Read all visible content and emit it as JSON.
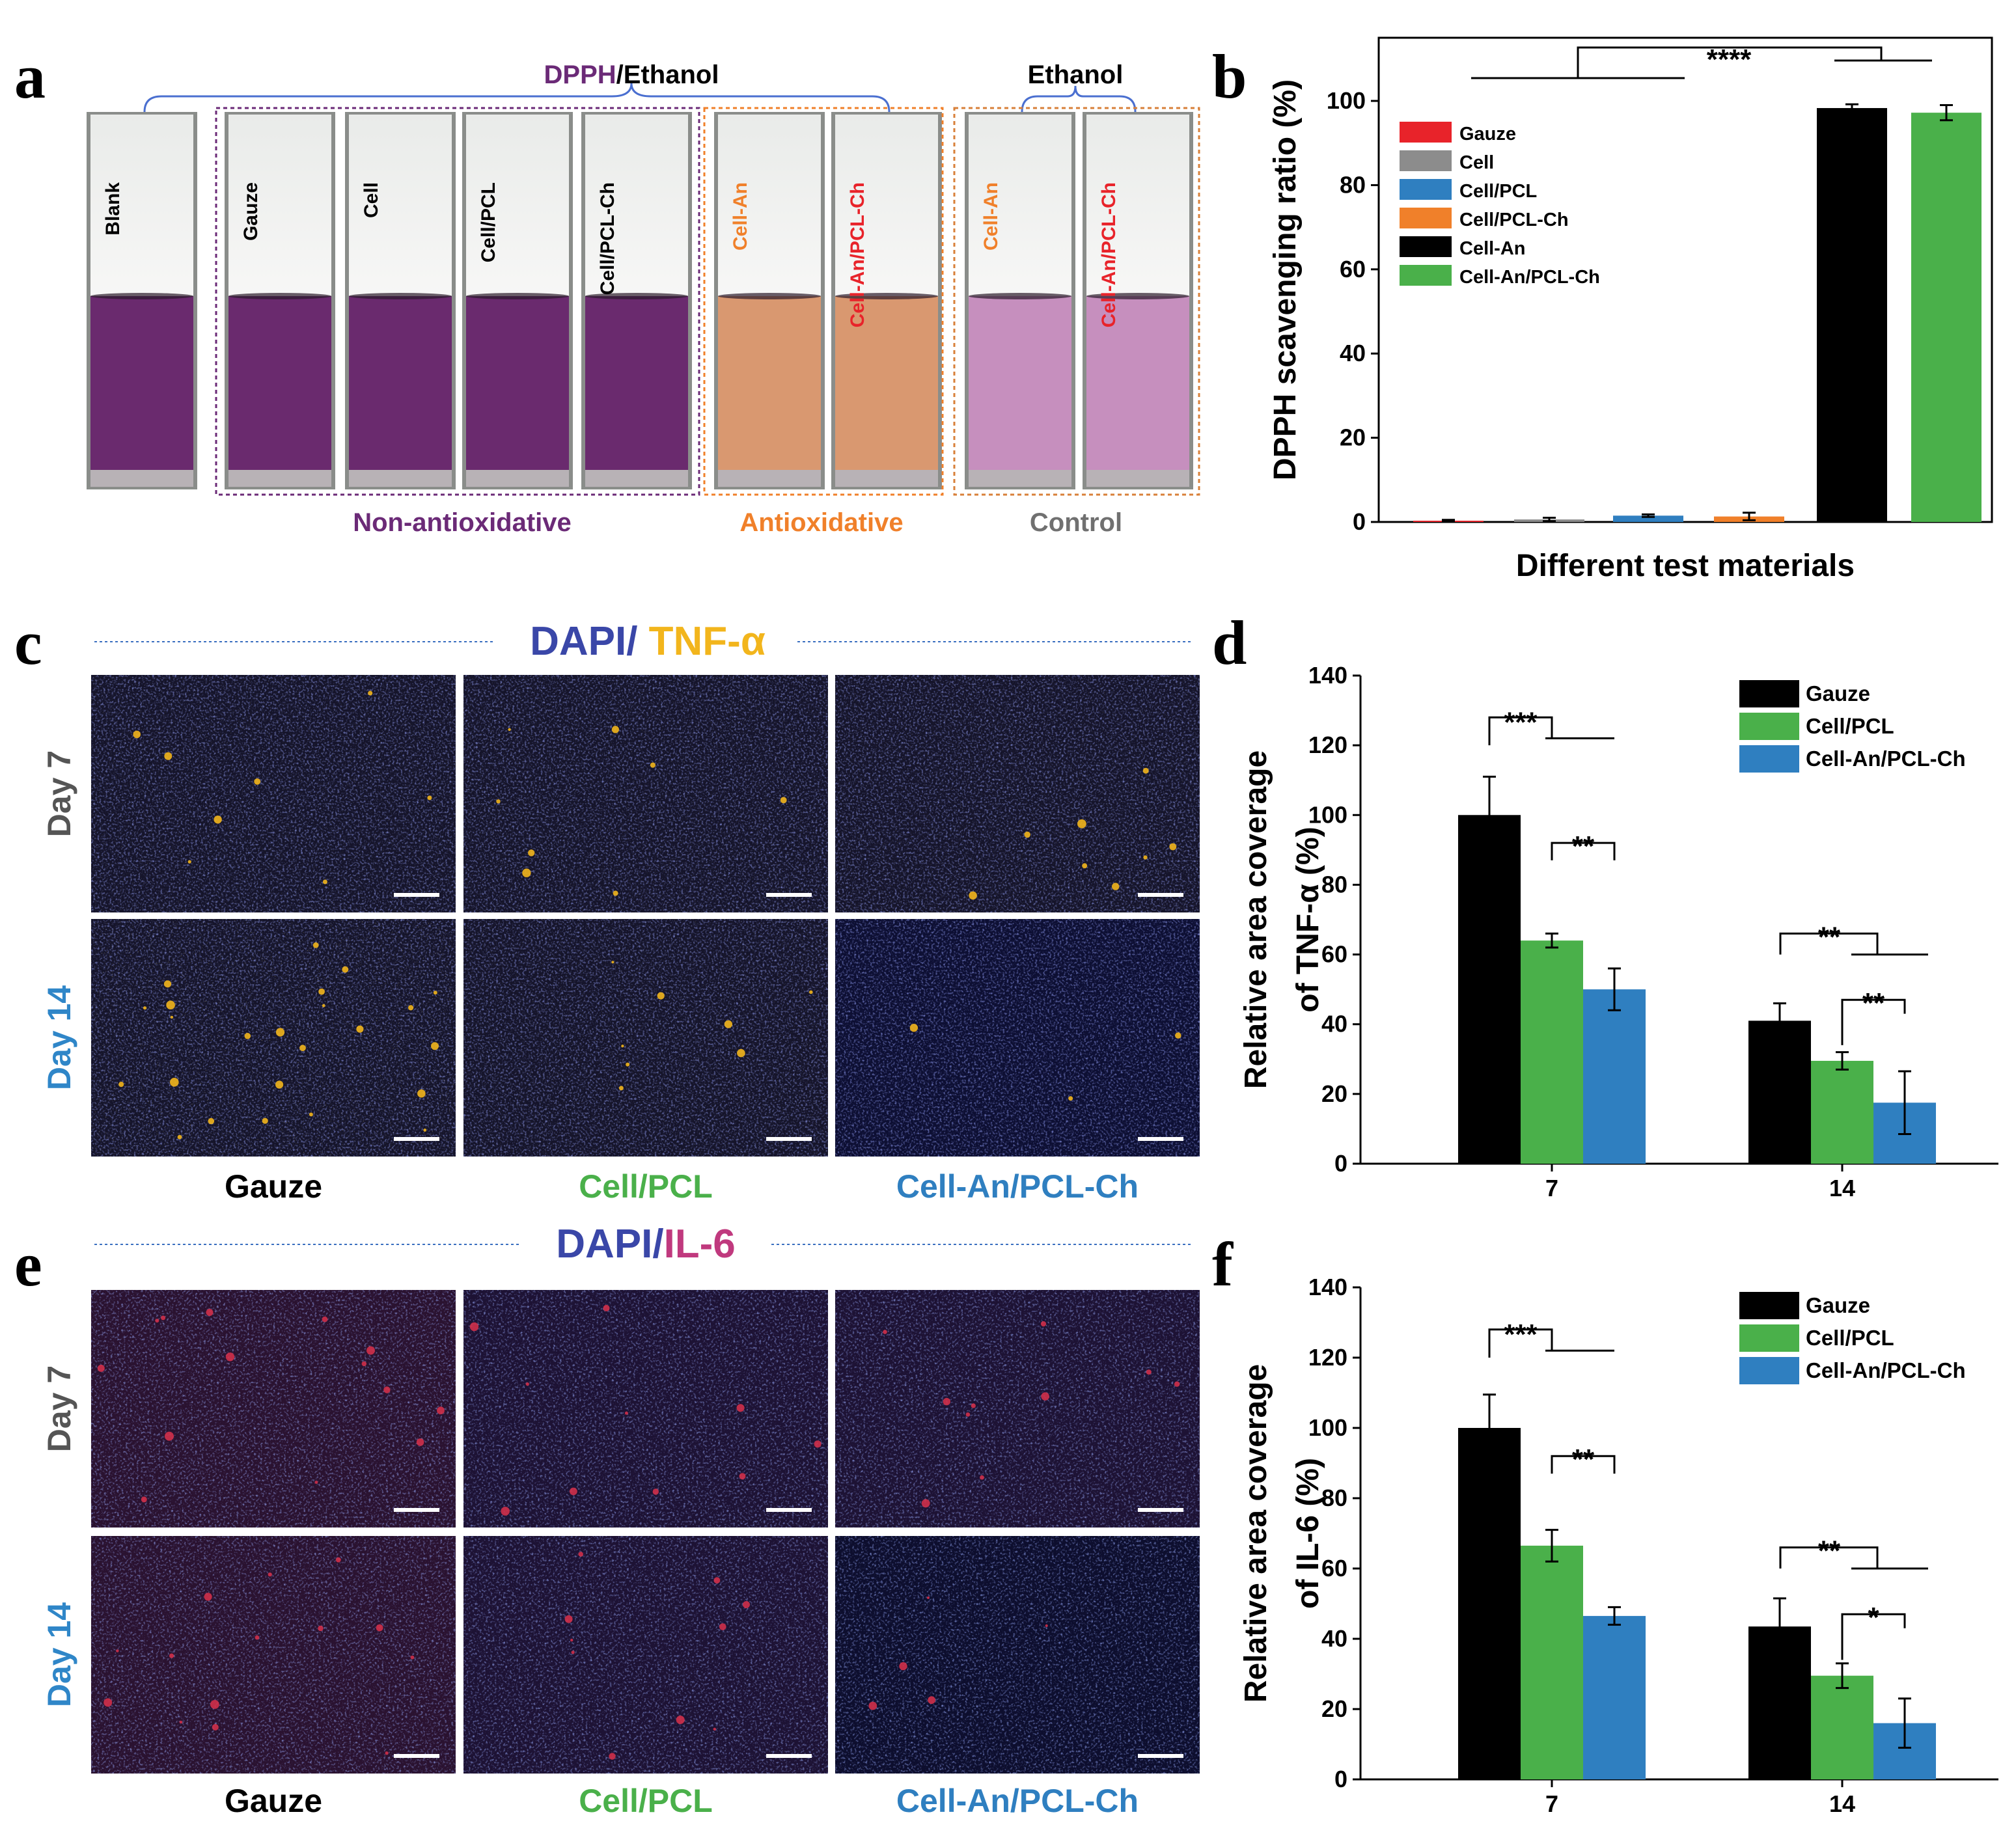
{
  "panels": {
    "a": {
      "letter": "a",
      "top_label_prefix": "DPPH",
      "top_label_suffix": "/Ethanol",
      "right_top_label": "Ethanol",
      "vials": [
        {
          "label": "Blank",
          "label_color": "#000000",
          "liquid": "#6a2a6e"
        },
        {
          "label": "Gauze",
          "label_color": "#000000",
          "liquid": "#6a2a6e"
        },
        {
          "label": "Cell",
          "label_color": "#000000",
          "liquid": "#6a2a6e"
        },
        {
          "label": "Cell/PCL",
          "label_color": "#000000",
          "liquid": "#6a2a6e"
        },
        {
          "label": "Cell/PCL-Ch",
          "label_color": "#000000",
          "liquid": "#6a2a6e"
        },
        {
          "label": "Cell-An",
          "label_color": "#f0802a",
          "liquid": "#d99870"
        },
        {
          "label": "Cell-An/PCL-Ch",
          "label_color": "#e8232a",
          "liquid": "#d99870"
        },
        {
          "label": "Cell-An",
          "label_color": "#f0802a",
          "liquid": "#c68fbe"
        },
        {
          "label": "Cell-An/PCL-Ch",
          "label_color": "#e8232a",
          "liquid": "#c68fbe"
        }
      ],
      "groups": [
        {
          "label": "Non-antioxidative",
          "color": "#6b2a77"
        },
        {
          "label": "Antioxidative",
          "color": "#f0802a"
        },
        {
          "label": "Control",
          "color": "#707070"
        }
      ]
    },
    "b": {
      "letter": "b"
    },
    "c": {
      "letter": "c",
      "stain_dapi": "DAPI/",
      "stain_marker": " TNF-α",
      "rows": [
        "Day 7",
        "Day 14"
      ],
      "columns": [
        "Gauze",
        "Cell/PCL",
        "Cell-An/PCL-Ch"
      ]
    },
    "d": {
      "letter": "d"
    },
    "e": {
      "letter": "e",
      "stain_dapi": "DAPI/",
      "stain_marker": "IL-6",
      "rows": [
        "Day 7",
        "Day 14"
      ],
      "columns": [
        "Gauze",
        "Cell/PCL",
        "Cell-An/PCL-Ch"
      ]
    },
    "f": {
      "letter": "f"
    }
  },
  "colors": {
    "dapi": "#3a47a8",
    "tnf": "#f2b51c",
    "il6": "#c0397e",
    "day7": "#555555",
    "day14": "#2f86c8",
    "col_gauze": "#000000",
    "col_cellpcl": "#4ab04a",
    "col_cellan": "#2f7fc0"
  },
  "chart_data": [
    {
      "panel": "b",
      "type": "bar",
      "categories": [
        "Gauze",
        "Cell",
        "Cell/PCL",
        "Cell/PCL-Ch",
        "Cell-An",
        "Cell-An/PCL-Ch"
      ],
      "values": [
        0.3,
        0.6,
        1.5,
        1.3,
        98.3,
        97.2
      ],
      "errors": [
        0.2,
        0.4,
        0.3,
        0.9,
        0.9,
        1.8
      ],
      "colors": [
        "#e8232a",
        "#8c8c8c",
        "#2f7fc0",
        "#f0802a",
        "#000000",
        "#4ab04a"
      ],
      "legend": [
        "Gauze",
        "Cell",
        "Cell/PCL",
        "Cell/PCL-Ch",
        "Cell-An",
        "Cell-An/PCL-Ch"
      ],
      "xlabel": "Different test materials",
      "ylabel": "DPPH scavenging ratio (%)",
      "ylim": [
        0,
        115
      ],
      "yticks": [
        0,
        20,
        40,
        60,
        80,
        100
      ],
      "significance": [
        "****"
      ]
    },
    {
      "panel": "d",
      "type": "bar",
      "categories": [
        "7",
        "14"
      ],
      "series": [
        {
          "name": "Gauze",
          "color": "#000000",
          "values": [
            100,
            41
          ],
          "errors": [
            11,
            5
          ]
        },
        {
          "name": "Cell/PCL",
          "color": "#4ab04a",
          "values": [
            64,
            29.5
          ],
          "errors": [
            2,
            2.5
          ]
        },
        {
          "name": "Cell-An/PCL-Ch",
          "color": "#2f7fc0",
          "values": [
            50,
            17.5
          ],
          "errors": [
            6,
            9
          ]
        }
      ],
      "ylabel_line1": "Relative area coverage",
      "ylabel_line2": "of TNF-α (%)",
      "ylim": [
        0,
        140
      ],
      "yticks": [
        0,
        20,
        40,
        60,
        80,
        100,
        120,
        140
      ],
      "significance": [
        "***",
        "**",
        "**",
        "**"
      ]
    },
    {
      "panel": "f",
      "type": "bar",
      "categories": [
        "7",
        "14"
      ],
      "series": [
        {
          "name": "Gauze",
          "color": "#000000",
          "values": [
            100,
            43.5
          ],
          "errors": [
            9.5,
            8
          ]
        },
        {
          "name": "Cell/PCL",
          "color": "#4ab04a",
          "values": [
            66.5,
            29.5
          ],
          "errors": [
            4.5,
            3.5
          ]
        },
        {
          "name": "Cell-An/PCL-Ch",
          "color": "#2f7fc0",
          "values": [
            46.5,
            16
          ],
          "errors": [
            2.5,
            7
          ]
        }
      ],
      "ylabel_line1": "Relative area coverage",
      "ylabel_line2": "of IL-6 (%)",
      "ylim": [
        0,
        140
      ],
      "yticks": [
        0,
        20,
        40,
        60,
        80,
        100,
        120,
        140
      ],
      "significance": [
        "***",
        "**",
        "**",
        "*"
      ]
    }
  ]
}
